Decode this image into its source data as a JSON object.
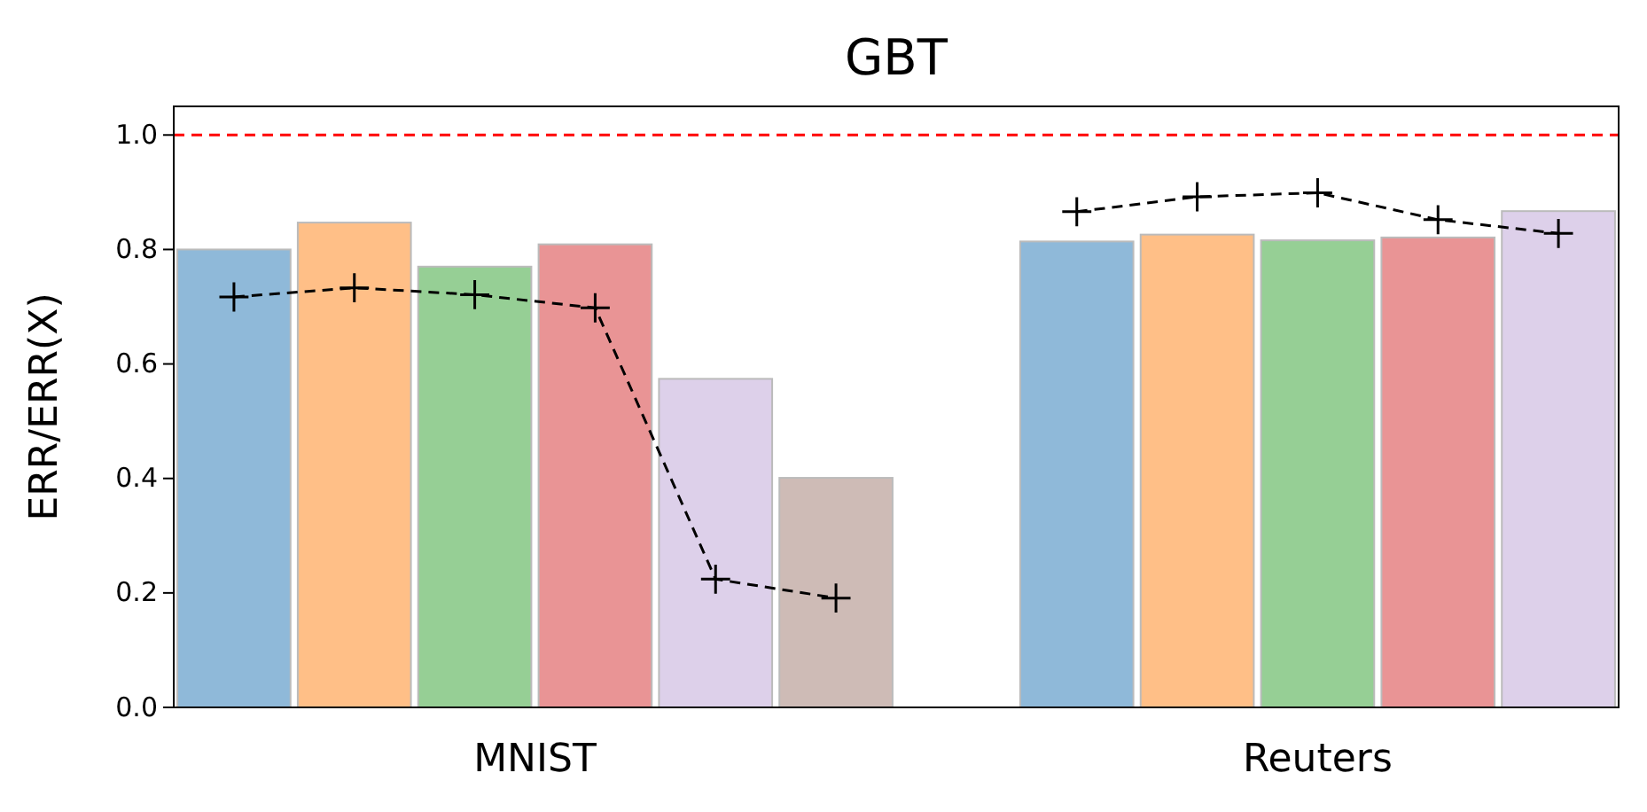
{
  "chart_data": {
    "type": "bar",
    "title": "GBT",
    "ylabel": "ERR/ERR(X)",
    "categories": [
      null,
      null,
      null,
      null,
      null,
      null,
      null,
      null,
      null,
      null,
      null,
      null
    ],
    "series": [
      {
        "values": [
          0.8,
          0.847,
          0.77,
          0.809,
          0.574,
          0.401,
          null,
          0.814,
          0.826,
          0.816,
          0.821,
          0.867
        ],
        "colors": [
          "#8fb9d9",
          "#ffbf87",
          "#96cf95",
          "#e99495",
          "#ddd0ea",
          "#cebbb6",
          null,
          "#8fb9d9",
          "#ffbf87",
          "#96cf95",
          "#e99495",
          "#ddd0ea"
        ]
      },
      {
        "type": "line",
        "color": "#000000",
        "marker": "cross",
        "line_style": "dashed",
        "values": [
          0.717,
          0.733,
          0.721,
          0.698,
          0.224,
          0.191,
          null,
          0.866,
          0.892,
          0.899,
          0.852,
          0.828
        ]
      }
    ],
    "annotations": [
      "MNIST",
      "Reuters"
    ],
    "ylim": [
      0,
      1.05
    ],
    "yticks": [
      {
        "value": 0,
        "label": "0.0"
      },
      {
        "value": 0.2,
        "label": "0.2"
      },
      {
        "value": 0.4,
        "label": "0.4"
      },
      {
        "value": 0.6,
        "label": "0.6"
      },
      {
        "value": 0.8,
        "label": "0.8"
      },
      {
        "value": 1,
        "label": "1.0"
      }
    ],
    "ref_lines": [
      {
        "axis": "y",
        "value": 1.0,
        "label": null,
        "color": "#ff0000",
        "line_style": "dashed"
      }
    ]
  }
}
